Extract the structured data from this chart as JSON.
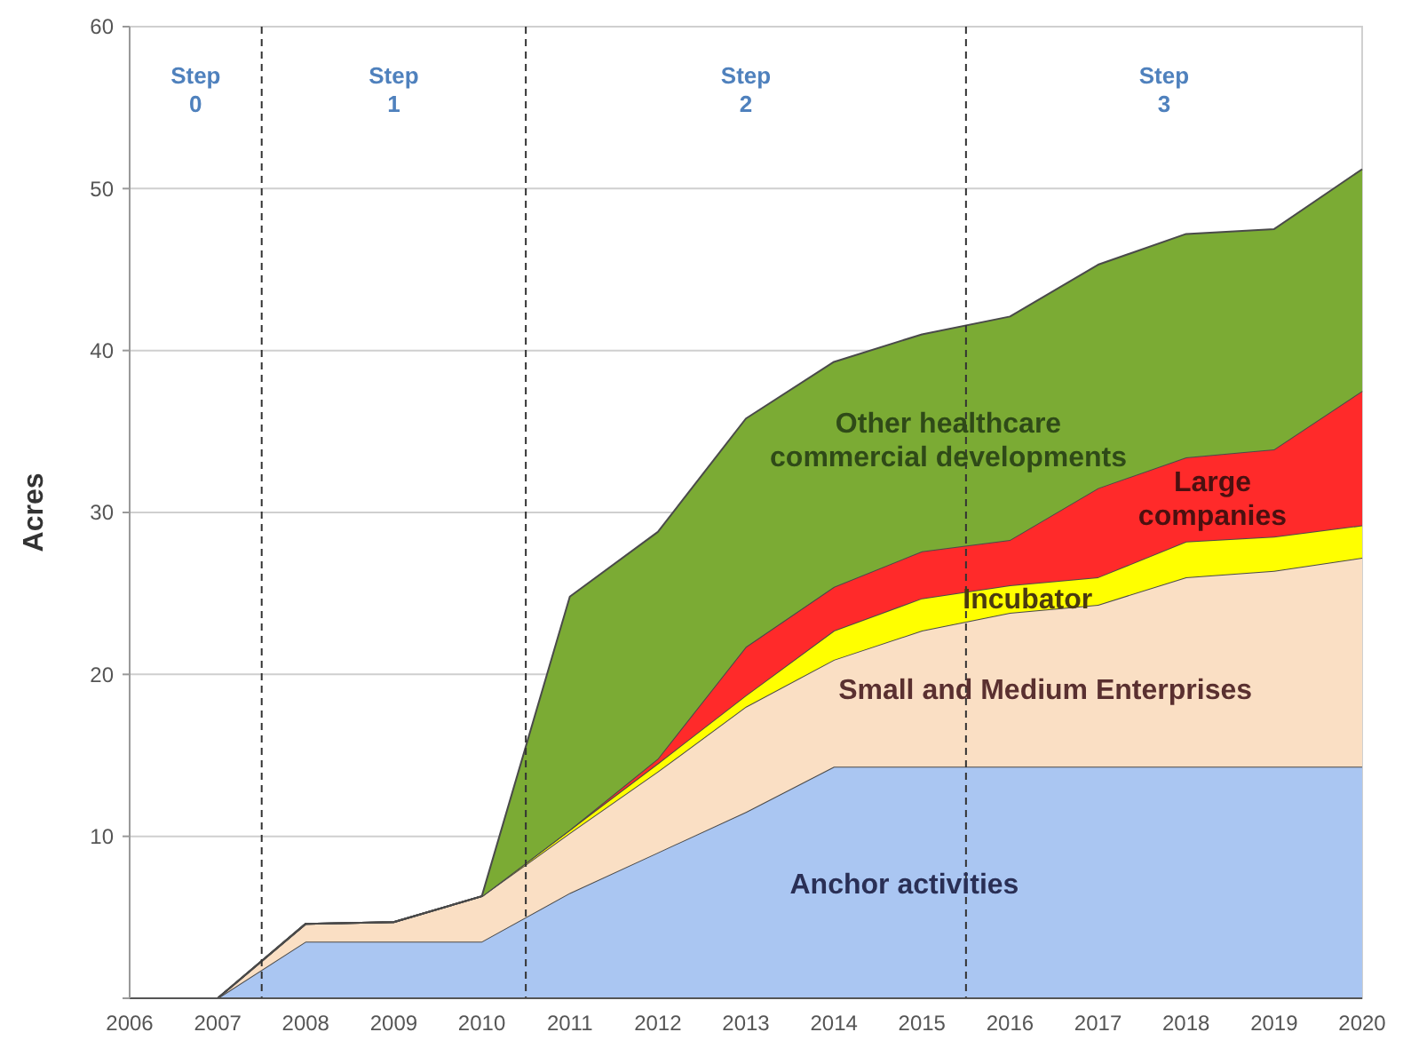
{
  "chart_data": {
    "type": "area",
    "stacked": true,
    "ylabel": "Acres",
    "x": [
      2006,
      2007,
      2008,
      2009,
      2010,
      2011,
      2012,
      2013,
      2014,
      2015,
      2016,
      2017,
      2018,
      2019,
      2020
    ],
    "xlim": [
      2006,
      2020
    ],
    "xticks": [
      2006,
      2007,
      2008,
      2009,
      2010,
      2011,
      2012,
      2013,
      2014,
      2015,
      2016,
      2017,
      2018,
      2019,
      2020
    ],
    "ylim": [
      0,
      60
    ],
    "yticks": [
      {
        "value": 0,
        "label": null
      },
      10,
      20,
      30,
      40,
      50,
      60
    ],
    "grid": "y",
    "series": [
      {
        "name": "Anchor activities",
        "color": "#aac6f2",
        "values": [
          0,
          0,
          3.5,
          3.5,
          3.5,
          6.5,
          9,
          11.5,
          14.3,
          14.3,
          14.3,
          14.3,
          14.3,
          14.3,
          14.3
        ]
      },
      {
        "name": "Small and Medium Enterprises",
        "color": "#fadfc4",
        "values": [
          0,
          0,
          1.1,
          1.2,
          2.8,
          3.7,
          5,
          6.5,
          6.6,
          8.4,
          9.5,
          10,
          11.7,
          12.1,
          12.9
        ]
      },
      {
        "name": "Incubator",
        "color": "#ffff00",
        "values": [
          0,
          0,
          0,
          0,
          0,
          0.2,
          0.5,
          0.7,
          1.8,
          2,
          1.7,
          1.7,
          2.2,
          2.1,
          2
        ]
      },
      {
        "name": "Large companies",
        "color": "#ff2a2a",
        "values": [
          0,
          0,
          0,
          0,
          0,
          0,
          0.3,
          3,
          2.7,
          2.9,
          2.8,
          5.5,
          5.2,
          5.4,
          8.3
        ]
      },
      {
        "name": "Other healthcare commercial developments",
        "color": "#7bab34",
        "values": [
          0,
          0,
          0,
          0,
          0,
          14.4,
          14,
          14.1,
          13.9,
          13.4,
          13.8,
          13.8,
          13.8,
          13.6,
          13.7
        ]
      }
    ],
    "ref_lines": [
      {
        "axis": "x",
        "value": 2007.5,
        "line_style": "dashed"
      },
      {
        "axis": "x",
        "value": 2010.5,
        "line_style": "dashed"
      },
      {
        "axis": "x",
        "value": 2015.5,
        "line_style": "dashed"
      }
    ],
    "annotations": [
      "Step 0",
      "Step 1",
      "Step 2",
      "Step 3"
    ]
  }
}
